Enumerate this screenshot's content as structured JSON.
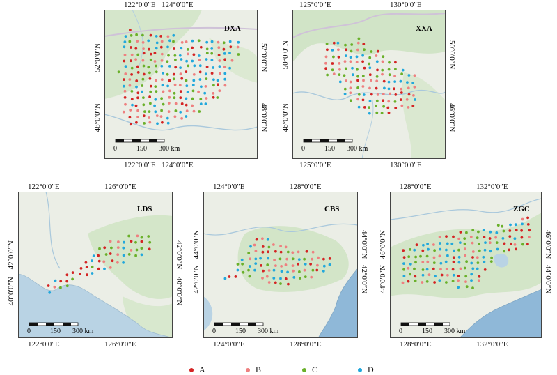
{
  "maps": [
    {
      "id": "dxa",
      "label": "DXA",
      "top_ticks": [
        "122°0′0″E",
        "124°0′0″E"
      ],
      "bottom_ticks": [
        "122°0′0″E",
        "124°0′0″E"
      ],
      "left_ticks": [
        "52°0′0″N",
        "48°0′0″N"
      ],
      "right_ticks": [
        "52°0′0″N",
        "48°0′0″N"
      ],
      "scale": [
        "0",
        "150",
        "300 km"
      ]
    },
    {
      "id": "xxa",
      "label": "XXA",
      "top_ticks": [
        "125°0′0″E",
        "130°0′0″E"
      ],
      "bottom_ticks": [
        "125°0′0″E",
        "130°0′0″E"
      ],
      "left_ticks": [
        "50°0′0″N",
        "46°0′0″N"
      ],
      "right_ticks": [
        "50°0′0″N",
        "46°0′0″N"
      ],
      "scale": [
        "0",
        "150",
        "300 km"
      ]
    },
    {
      "id": "lds",
      "label": "LDS",
      "top_ticks": [
        "122°0′0″E",
        "126°0′0″E"
      ],
      "bottom_ticks": [
        "122°0′0″E",
        "126°0′0″E"
      ],
      "left_ticks": [
        "42°0′0″N",
        "40°0′0″N"
      ],
      "right_ticks": [
        "42°0′0″N",
        "40°0′0″N"
      ],
      "scale": [
        "0",
        "150",
        "300 km"
      ]
    },
    {
      "id": "cbs",
      "label": "CBS",
      "top_ticks": [
        "124°0′0″E",
        "128°0′0″E"
      ],
      "bottom_ticks": [
        "124°0′0″E",
        "128°0′0″E"
      ],
      "left_ticks": [
        "44°0′0″N",
        "42°0′0″N"
      ],
      "right_ticks": [
        "44°0′0″N",
        "42°0′0″N"
      ],
      "scale": [
        "0",
        "150",
        "300 km"
      ]
    },
    {
      "id": "zgc",
      "label": "ZGC",
      "top_ticks": [
        "128°0′0″E",
        "132°0′0″E"
      ],
      "bottom_ticks": [
        "128°0′0″E",
        "132°0′0″E"
      ],
      "left_ticks": [
        "46°0′0″N",
        "44°0′0″N"
      ],
      "right_ticks": [
        "46°0′0″N",
        "44°0′0″N"
      ],
      "scale": [
        "0",
        "150",
        "300 km"
      ]
    }
  ],
  "legend": [
    {
      "label": "A",
      "color": "#d42424"
    },
    {
      "label": "B",
      "color": "#ee8080"
    },
    {
      "label": "C",
      "color": "#6ab02a"
    },
    {
      "label": "D",
      "color": "#22a8dc"
    }
  ],
  "colors": {
    "land": "#ebeee6",
    "forest": "#d1e4c7",
    "sea": "#b9d3e4",
    "border": "#cfc2d8",
    "river": "#a9c8dc",
    "frame": "#444444"
  }
}
